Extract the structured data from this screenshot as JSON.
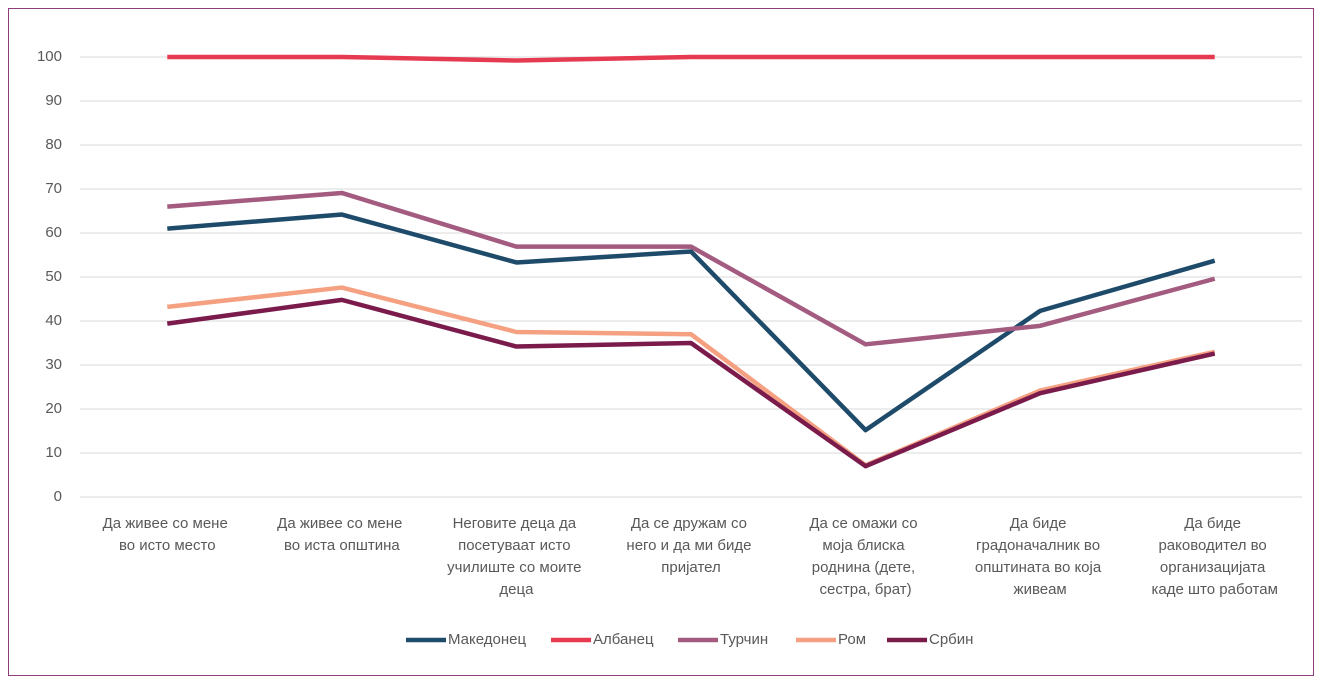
{
  "chart_data": {
    "type": "line",
    "categories": [
      "Да живее со мене во исто место",
      "Да живее со мене во иста општина",
      "Неговите деца да посетуваат исто училиште со моите деца",
      "Да се дружам со него и да ми биде пријател",
      "Да се омажи со моја блиска роднина (дете, сестра, брат)",
      "Да биде градоначалник во општината во која живеам",
      "Да биде раководител во организацијата каде што работам"
    ],
    "series": [
      {
        "name": "Македонец",
        "color": "#1f4b6b",
        "values": [
          61,
          64.2,
          53.3,
          55.8,
          15.2,
          42.3,
          53.7
        ]
      },
      {
        "name": "Албанец",
        "color": "#e63a50",
        "values": [
          100,
          100,
          99.2,
          100,
          100,
          100,
          100
        ]
      },
      {
        "name": "Турчин",
        "color": "#a35b80",
        "values": [
          66,
          69.1,
          56.9,
          56.9,
          34.7,
          38.9,
          49.6
        ]
      },
      {
        "name": "Ром",
        "color": "#f4a081",
        "values": [
          43.2,
          47.6,
          37.5,
          37,
          7.2,
          24.2,
          33
        ]
      },
      {
        "name": "Србин",
        "color": "#7a1b4c",
        "values": [
          39.4,
          44.8,
          34.2,
          35,
          7,
          23.6,
          32.6
        ]
      }
    ],
    "ylim": [
      0,
      100
    ],
    "yticks": [
      0,
      10,
      20,
      30,
      40,
      50,
      60,
      70,
      80,
      90,
      100
    ],
    "grid": true,
    "legend": "bottom"
  }
}
